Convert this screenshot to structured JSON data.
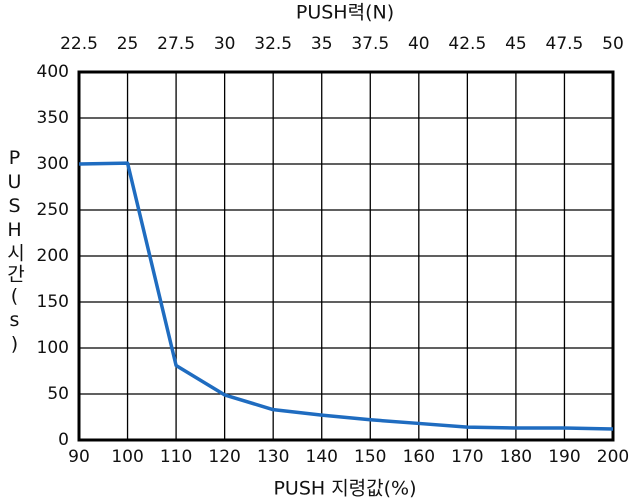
{
  "chart_data": {
    "type": "line",
    "x2label": "PUSH력(N)",
    "xlabel": "PUSH 지령값(%)",
    "ylabel": "PUSH시간(s)",
    "x": [
      90,
      100,
      110,
      120,
      130,
      140,
      150,
      160,
      170,
      180,
      190,
      200
    ],
    "values": [
      300,
      301,
      81,
      49,
      33,
      27,
      22,
      18,
      14,
      13,
      13,
      12
    ],
    "color": "#1f6cc0",
    "xlim": [
      90,
      200
    ],
    "xticks": [
      90,
      100,
      110,
      120,
      130,
      140,
      150,
      160,
      170,
      180,
      190,
      200
    ],
    "x2lim": [
      22.5,
      50
    ],
    "x2ticks": [
      22.5,
      25,
      27.5,
      30,
      32.5,
      35,
      37.5,
      40,
      42.5,
      45,
      47.5,
      50
    ],
    "ylim": [
      0,
      400
    ],
    "yticks": [
      0,
      50,
      100,
      150,
      200,
      250,
      300,
      350,
      400
    ],
    "grid": true
  }
}
